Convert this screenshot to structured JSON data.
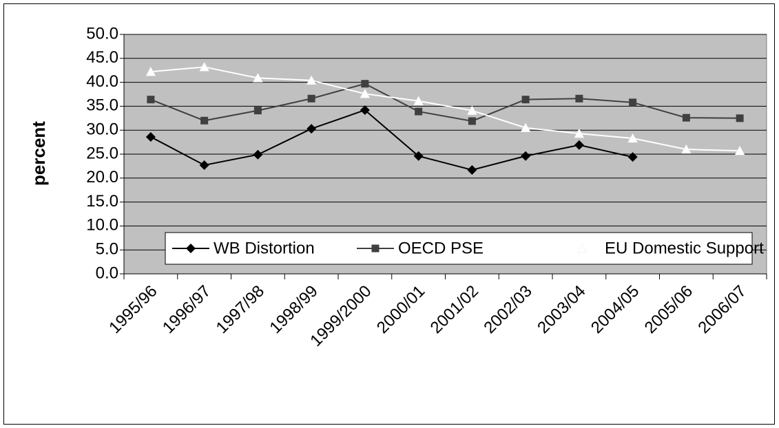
{
  "chart_data": {
    "type": "line",
    "y_label": "percent",
    "categories": [
      "1995/96",
      "1996/97",
      "1997/98",
      "1998/99",
      "1999/2000",
      "2000/01",
      "2001/02",
      "2002/03",
      "2003/04",
      "2004/05",
      "2005/06",
      "2006/07"
    ],
    "series": [
      {
        "name": "WB Distortion",
        "color": "#000000",
        "marker": "diamond",
        "values": [
          28.6,
          22.7,
          24.9,
          30.3,
          34.2,
          24.6,
          21.7,
          24.6,
          26.9,
          24.4,
          null,
          null
        ]
      },
      {
        "name": "OECD PSE",
        "color": "#404040",
        "marker": "square",
        "values": [
          36.4,
          32.0,
          34.1,
          36.6,
          39.7,
          33.9,
          31.9,
          36.4,
          36.6,
          35.8,
          32.6,
          32.5
        ]
      },
      {
        "name": "EU Domestic Support",
        "color": "#ffffff",
        "marker": "triangle",
        "values": [
          42.2,
          43.2,
          40.9,
          40.4,
          37.6,
          36.1,
          34.1,
          30.5,
          29.3,
          28.3,
          26.0,
          25.7
        ]
      }
    ],
    "ylim": [
      0,
      50
    ],
    "yticks": [
      {
        "value": 0,
        "label": "0.0"
      },
      {
        "value": 5,
        "label": "5.0"
      },
      {
        "value": 10,
        "label": "10.0"
      },
      {
        "value": 15,
        "label": "15.0"
      },
      {
        "value": 20,
        "label": "20.0"
      },
      {
        "value": 25,
        "label": "25.0"
      },
      {
        "value": 30,
        "label": "30.0"
      },
      {
        "value": 35,
        "label": "35.0"
      },
      {
        "value": 40,
        "label": "40.0"
      },
      {
        "value": 45,
        "label": "45.0"
      },
      {
        "value": 50,
        "label": "50.0"
      }
    ],
    "grid": true,
    "plot_background": "#c0c0c0",
    "legend": "bottom"
  }
}
